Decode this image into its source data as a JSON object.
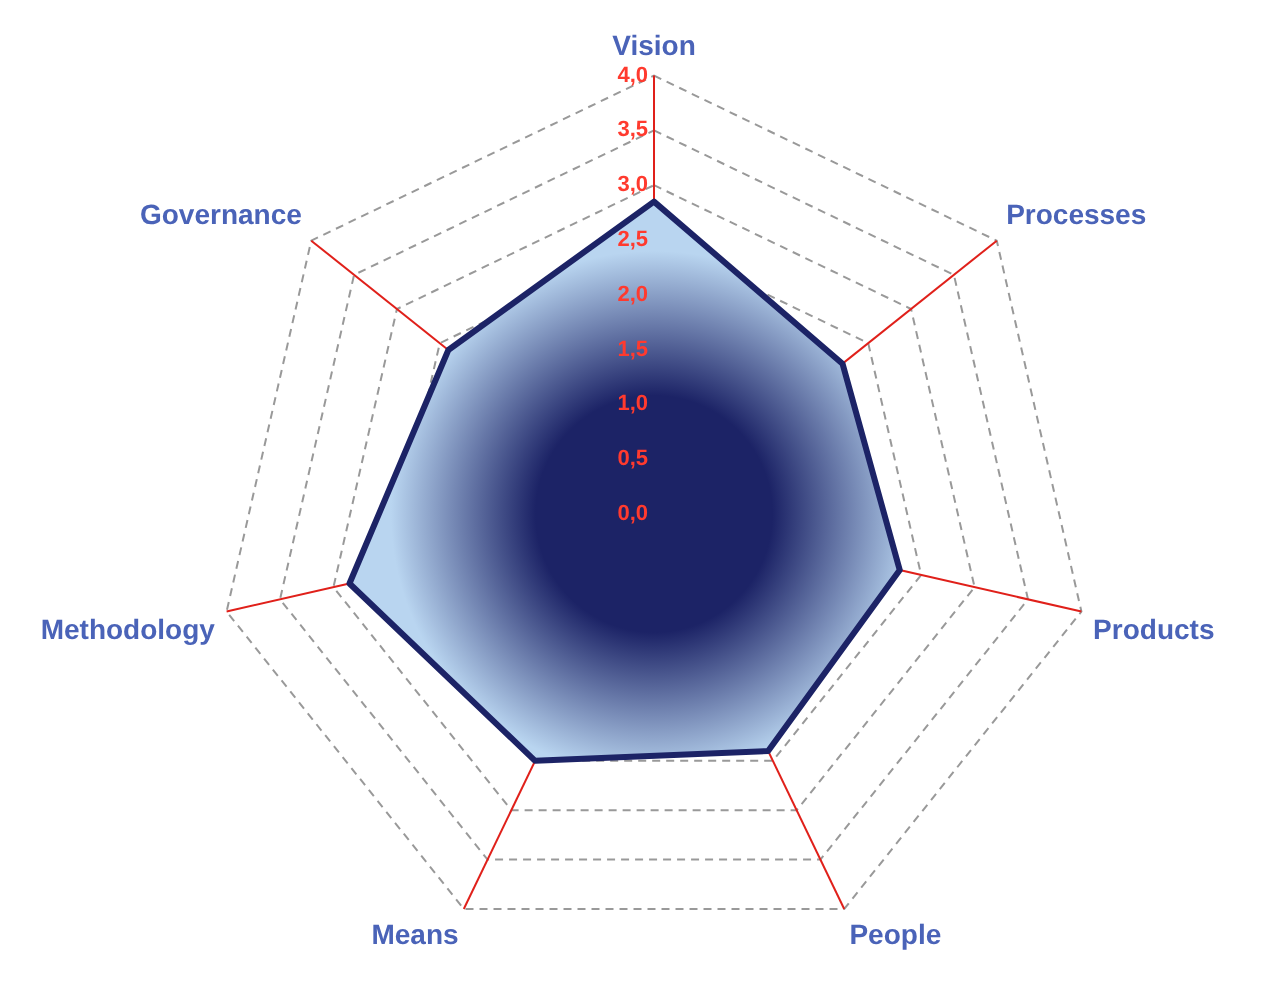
{
  "chart_data": {
    "type": "radar",
    "categories": [
      "Vision",
      "Processes",
      "Products",
      "People",
      "Means",
      "Methodology",
      "Governance"
    ],
    "series": [
      {
        "color": "#1c2366",
        "values": [
          2.85,
          2.2,
          2.3,
          2.4,
          2.5,
          2.85,
          2.4
        ]
      }
    ],
    "ylim": [
      0,
      4
    ],
    "yticks": [
      {
        "value": 0,
        "label": "0,0"
      },
      {
        "value": 0.5,
        "label": "0,5"
      },
      {
        "value": 1,
        "label": "1,0"
      },
      {
        "value": 1.5,
        "label": "1,5"
      },
      {
        "value": 2,
        "label": "2,0"
      },
      {
        "value": 2.5,
        "label": "2,5"
      },
      {
        "value": 3,
        "label": "3,0"
      },
      {
        "value": 3.5,
        "label": "3,5"
      },
      {
        "value": 4,
        "label": "4,0"
      }
    ],
    "grid": true,
    "legend": false
  }
}
